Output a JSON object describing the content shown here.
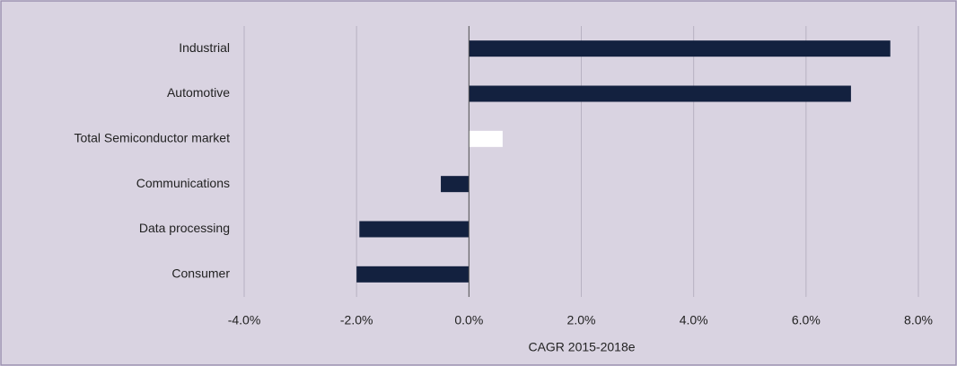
{
  "chart_data": {
    "type": "bar",
    "orientation": "horizontal",
    "categories": [
      "Industrial",
      "Automotive",
      "Total Semiconductor market",
      "Communications",
      "Data processing",
      "Consumer"
    ],
    "values": [
      7.5,
      6.8,
      0.6,
      -0.5,
      -1.95,
      -2.0
    ],
    "colors": [
      "#13213f",
      "#13213f",
      "#ffffff",
      "#13213f",
      "#13213f",
      "#13213f"
    ],
    "x_label": "CAGR 2015-2018e",
    "xlim": [
      -4,
      8
    ],
    "xticks": [
      {
        "value": -4,
        "label": "-4.0%"
      },
      {
        "value": -2,
        "label": "-2.0%"
      },
      {
        "value": 0,
        "label": "0.0%"
      },
      {
        "value": 2,
        "label": "2.0%"
      },
      {
        "value": 4,
        "label": "4.0%"
      },
      {
        "value": 6,
        "label": "6.0%"
      },
      {
        "value": 8,
        "label": "8.0%"
      }
    ],
    "grid": true
  }
}
